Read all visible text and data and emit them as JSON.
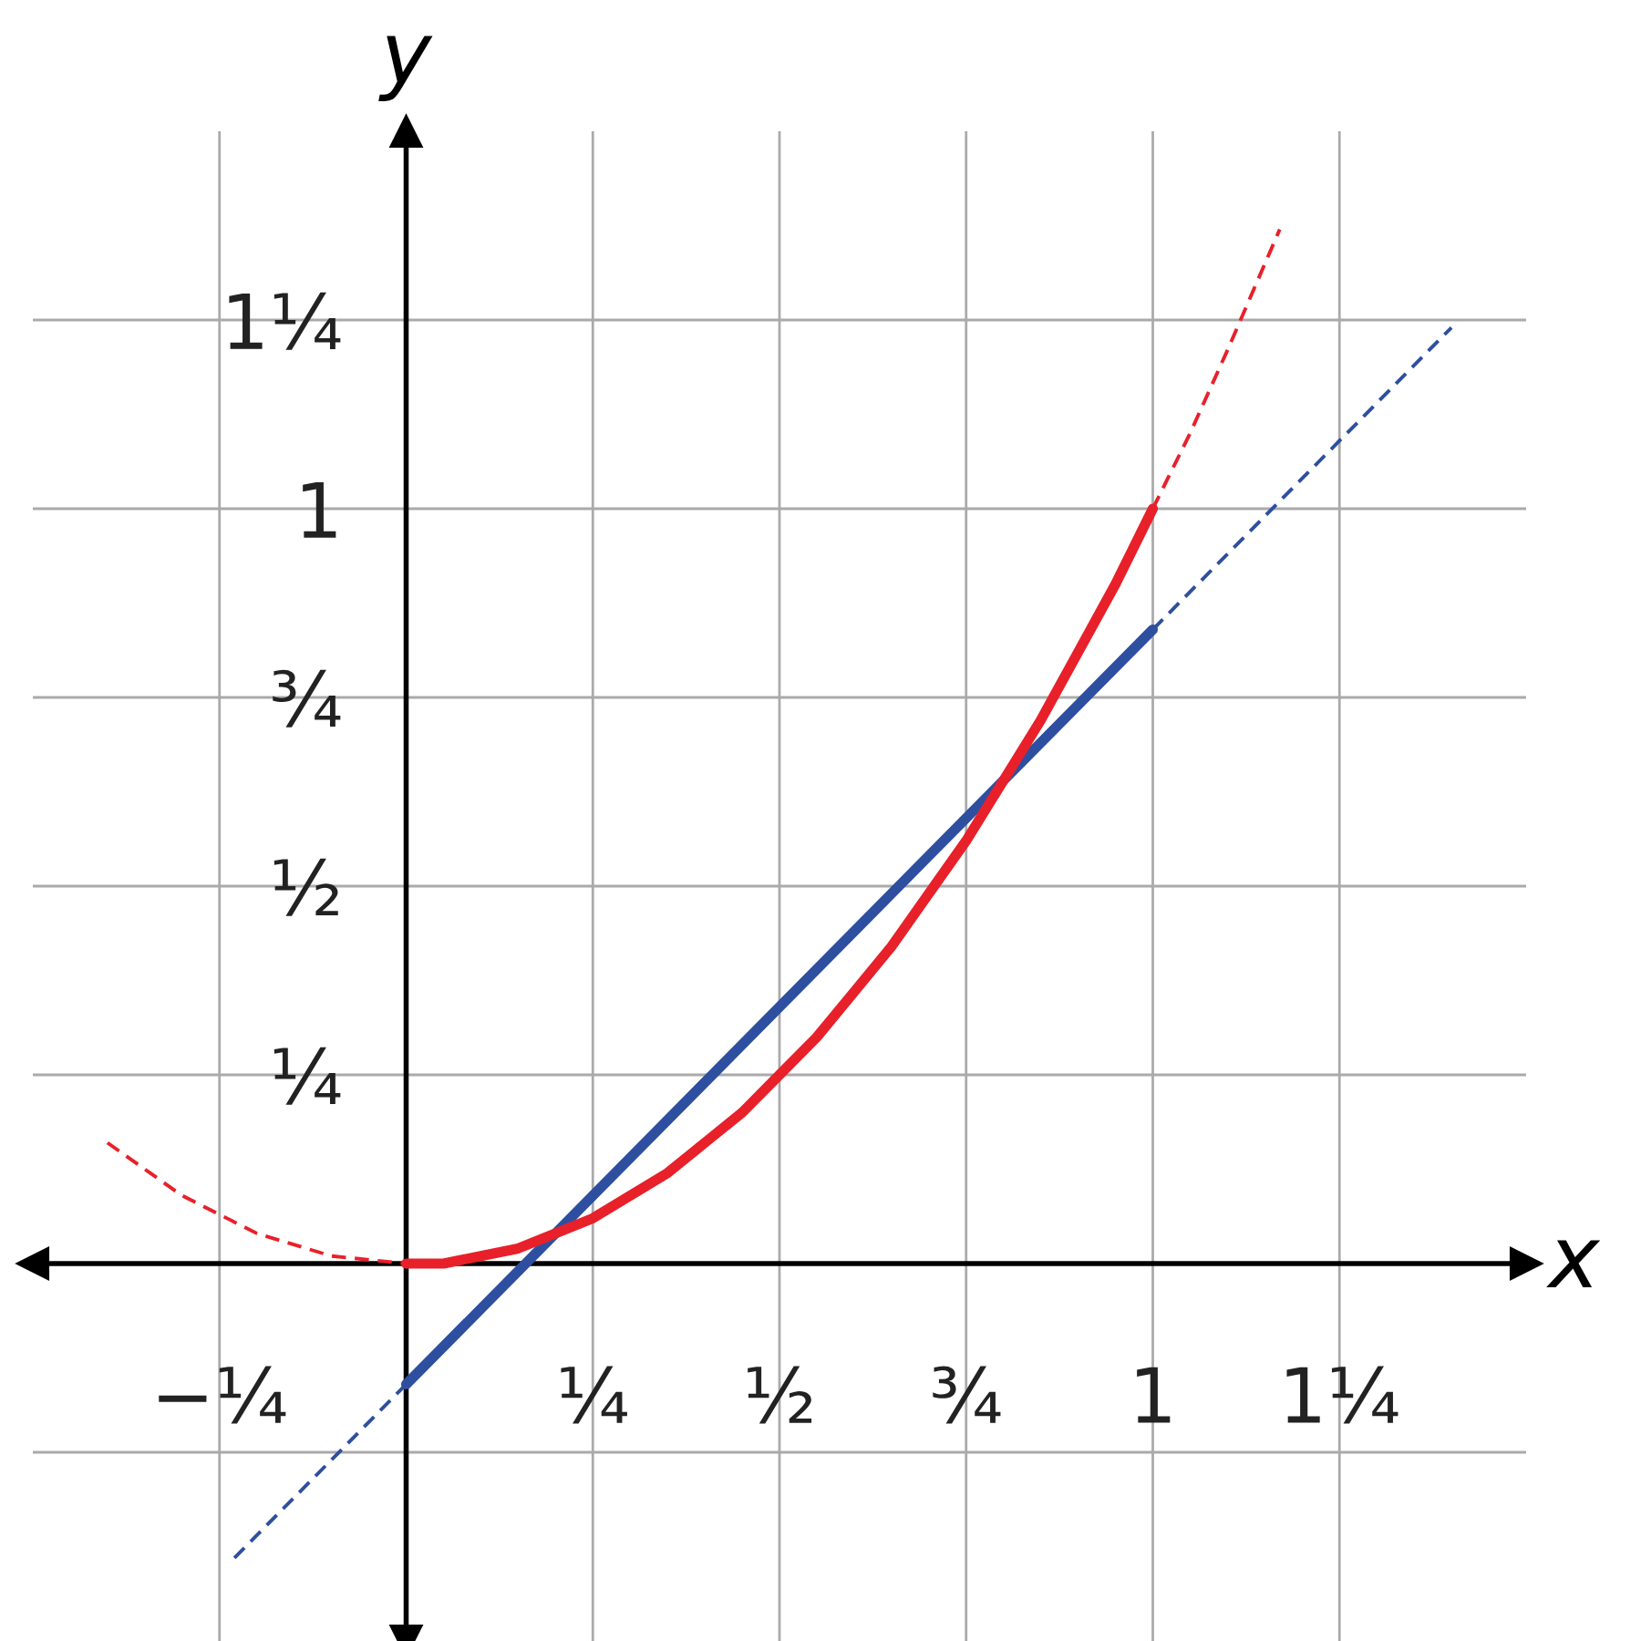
{
  "chart_data": {
    "type": "line",
    "xlabel": "x",
    "ylabel": "y",
    "xlim": [
      -0.5,
      1.5
    ],
    "ylim": [
      -0.5,
      1.5
    ],
    "xticks": [
      {
        "value": -0.25,
        "label": "−¼"
      },
      {
        "value": 0.25,
        "label": "¼"
      },
      {
        "value": 0.5,
        "label": "½"
      },
      {
        "value": 0.75,
        "label": "¾"
      },
      1,
      {
        "value": 1.25,
        "label": "1¼"
      }
    ],
    "yticks": [
      {
        "value": -0.25,
        "label": null
      },
      {
        "value": 0.25,
        "label": "¼"
      },
      {
        "value": 0.5,
        "label": "½"
      },
      {
        "value": 0.75,
        "label": "¾"
      },
      1,
      {
        "value": 1.25,
        "label": "1¼"
      }
    ],
    "grid": true,
    "legend": false,
    "series": [
      {
        "color": "#2e4fa0",
        "line_style": "dashed",
        "x": [
          -0.23,
          0
        ],
        "values": [
          -0.39,
          -0.16
        ]
      },
      {
        "color": "#2e4fa0",
        "line_style": "dashed",
        "x": [
          1,
          1.4
        ],
        "values": [
          0.84,
          1.24
        ]
      },
      {
        "color": "#e8202a",
        "line_style": "dashed",
        "x": [
          -0.4,
          -0.3,
          -0.2,
          -0.1,
          0
        ],
        "values": [
          0.16,
          0.09,
          0.04,
          0.01,
          0
        ]
      },
      {
        "color": "#e8202a",
        "line_style": "dashed",
        "x": [
          1,
          1.05,
          1.1,
          1.17
        ],
        "values": [
          1,
          1.1,
          1.21,
          1.37
        ]
      },
      {
        "color": "#2e4fa0",
        "line_style": "solid",
        "x": [
          0,
          1
        ],
        "values": [
          -0.16,
          0.84
        ]
      },
      {
        "color": "#e8202a",
        "line_style": "solid",
        "x": [
          0,
          0.05,
          0.1,
          0.15,
          0.2,
          0.25,
          0.3,
          0.35,
          0.4,
          0.45,
          0.5,
          0.55,
          0.6,
          0.65,
          0.7,
          0.75,
          0.8,
          0.85,
          0.9,
          0.95,
          1
        ],
        "values": [
          0,
          0,
          0.01,
          0.02,
          0.04,
          0.06,
          0.09,
          0.12,
          0.16,
          0.2,
          0.25,
          0.3,
          0.36,
          0.42,
          0.49,
          0.56,
          0.64,
          0.72,
          0.81,
          0.9,
          1
        ]
      }
    ]
  }
}
